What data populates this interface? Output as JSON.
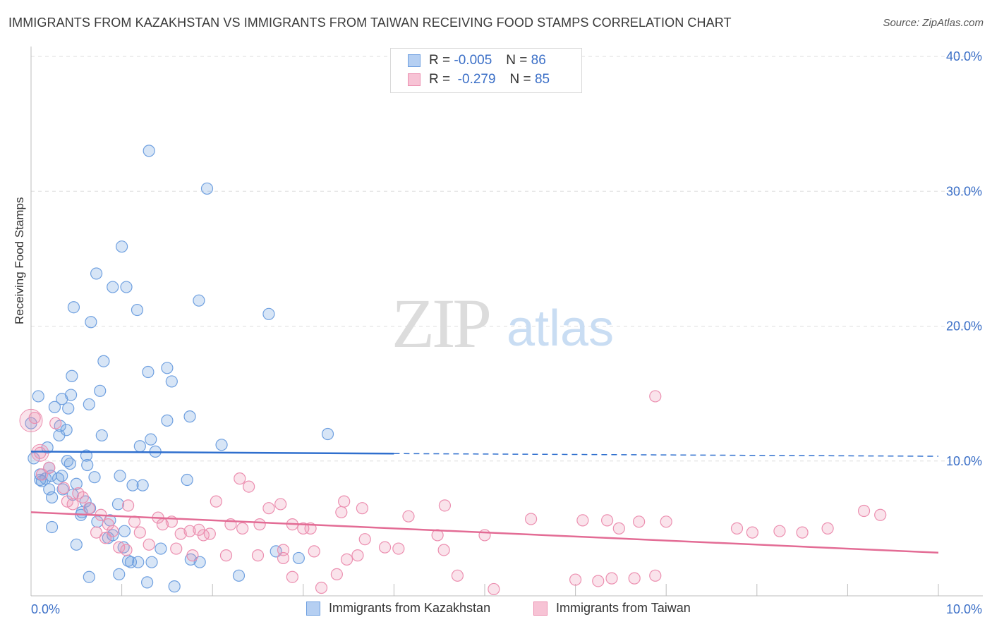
{
  "title": "IMMIGRANTS FROM KAZAKHSTAN VS IMMIGRANTS FROM TAIWAN RECEIVING FOOD STAMPS CORRELATION CHART",
  "source": "Source: ZipAtlas.com",
  "watermark": {
    "zip": "ZIP",
    "atlas": "atlas"
  },
  "legend": {
    "rows": [
      {
        "r_label": "R =",
        "r_value": "-0.005",
        "n_label": "N =",
        "n_value": "86"
      },
      {
        "r_label": "R =",
        "r_value": "-0.279",
        "n_label": "N =",
        "n_value": "85"
      }
    ]
  },
  "bottom_legend": [
    "Immigrants from Kazakhstan",
    "Immigrants from Taiwan"
  ],
  "chart_data": {
    "type": "scatter",
    "title": "IMMIGRANTS FROM KAZAKHSTAN VS IMMIGRANTS FROM TAIWAN RECEIVING FOOD STAMPS CORRELATION CHART",
    "xlabel": "",
    "ylabel": "Receiving Food Stamps",
    "xlim": [
      0,
      10
    ],
    "ylim": [
      0,
      40
    ],
    "x_tick_labels": [
      "0.0%",
      "10.0%"
    ],
    "y_ticks": [
      10,
      20,
      30,
      40
    ],
    "y_tick_labels": [
      "10.0%",
      "20.0%",
      "30.0%",
      "40.0%"
    ],
    "colors": {
      "kazakhstan": "#6fa0e0",
      "taiwan": "#ec8fb0",
      "kaz_line": "#2f6fce",
      "tw_line": "#e36c95"
    },
    "series": [
      {
        "name": "Immigrants from Kazakhstan",
        "r": -0.005,
        "n": 86,
        "trend": {
          "x0": 0.0,
          "y0": 10.7,
          "x1": 4.0,
          "y1": 10.55,
          "dash_to_x": 10.0,
          "dash_to_y": 10.35
        },
        "points": [
          [
            1.3,
            33.0
          ],
          [
            1.94,
            30.2
          ],
          [
            1.0,
            25.9
          ],
          [
            0.72,
            23.9
          ],
          [
            0.9,
            22.9
          ],
          [
            1.05,
            22.9
          ],
          [
            0.47,
            21.4
          ],
          [
            1.17,
            21.2
          ],
          [
            1.85,
            21.9
          ],
          [
            2.62,
            20.9
          ],
          [
            0.66,
            20.3
          ],
          [
            0.8,
            17.4
          ],
          [
            1.29,
            16.6
          ],
          [
            1.5,
            16.9
          ],
          [
            0.45,
            16.3
          ],
          [
            1.55,
            15.9
          ],
          [
            0.08,
            14.8
          ],
          [
            0.76,
            15.2
          ],
          [
            0.34,
            14.6
          ],
          [
            0.44,
            14.9
          ],
          [
            0.64,
            14.2
          ],
          [
            0.26,
            14.0
          ],
          [
            0.41,
            13.9
          ],
          [
            1.5,
            13.0
          ],
          [
            1.75,
            13.3
          ],
          [
            0.32,
            12.6
          ],
          [
            0.0,
            12.8
          ],
          [
            0.39,
            12.3
          ],
          [
            0.31,
            11.9
          ],
          [
            0.78,
            11.9
          ],
          [
            1.32,
            11.6
          ],
          [
            3.27,
            12.0
          ],
          [
            1.2,
            11.1
          ],
          [
            2.1,
            11.2
          ],
          [
            0.18,
            11.0
          ],
          [
            1.37,
            10.7
          ],
          [
            0.61,
            10.4
          ],
          [
            0.03,
            10.2
          ],
          [
            0.2,
            9.5
          ],
          [
            0.43,
            9.8
          ],
          [
            0.62,
            9.7
          ],
          [
            0.1,
            9.0
          ],
          [
            0.22,
            8.9
          ],
          [
            0.16,
            8.7
          ],
          [
            0.1,
            8.6
          ],
          [
            0.34,
            8.9
          ],
          [
            0.7,
            8.8
          ],
          [
            0.98,
            8.9
          ],
          [
            1.72,
            8.6
          ],
          [
            0.5,
            8.3
          ],
          [
            0.2,
            7.9
          ],
          [
            0.35,
            7.9
          ],
          [
            0.46,
            7.5
          ],
          [
            1.12,
            8.2
          ],
          [
            1.23,
            8.2
          ],
          [
            0.6,
            7.0
          ],
          [
            0.23,
            7.3
          ],
          [
            0.65,
            6.5
          ],
          [
            0.56,
            6.2
          ],
          [
            0.96,
            6.8
          ],
          [
            0.73,
            5.5
          ],
          [
            0.87,
            5.6
          ],
          [
            0.23,
            5.1
          ],
          [
            1.03,
            4.8
          ],
          [
            0.85,
            4.3
          ],
          [
            0.5,
            3.8
          ],
          [
            1.02,
            3.6
          ],
          [
            1.43,
            3.5
          ],
          [
            1.07,
            2.6
          ],
          [
            1.33,
            2.5
          ],
          [
            1.18,
            2.5
          ],
          [
            1.1,
            2.5
          ],
          [
            1.76,
            2.7
          ],
          [
            1.86,
            2.5
          ],
          [
            2.7,
            3.3
          ],
          [
            2.95,
            2.8
          ],
          [
            0.64,
            1.4
          ],
          [
            0.97,
            1.6
          ],
          [
            1.28,
            1.0
          ],
          [
            1.58,
            0.7
          ],
          [
            2.29,
            1.5
          ],
          [
            0.12,
            8.5
          ],
          [
            0.3,
            8.7
          ],
          [
            0.55,
            6.0
          ],
          [
            0.4,
            10.0
          ],
          [
            0.9,
            4.5
          ]
        ]
      },
      {
        "name": "Immigrants from Taiwan",
        "r": -0.279,
        "n": 85,
        "trend": {
          "x0": 0.0,
          "y0": 6.2,
          "x1": 10.0,
          "y1": 3.2
        },
        "points": [
          [
            0.04,
            13.2
          ],
          [
            0.27,
            12.8
          ],
          [
            0.1,
            10.6
          ],
          [
            0.2,
            9.5
          ],
          [
            0.12,
            9.0
          ],
          [
            0.36,
            8.0
          ],
          [
            0.52,
            7.6
          ],
          [
            0.57,
            7.3
          ],
          [
            0.4,
            7.0
          ],
          [
            0.46,
            6.8
          ],
          [
            0.64,
            6.5
          ],
          [
            0.77,
            6.0
          ],
          [
            1.07,
            6.7
          ],
          [
            1.4,
            5.8
          ],
          [
            1.55,
            5.5
          ],
          [
            1.14,
            5.5
          ],
          [
            0.85,
            5.3
          ],
          [
            0.9,
            4.8
          ],
          [
            1.2,
            4.7
          ],
          [
            1.45,
            5.3
          ],
          [
            1.65,
            4.6
          ],
          [
            1.75,
            4.8
          ],
          [
            1.85,
            4.9
          ],
          [
            1.9,
            4.5
          ],
          [
            1.97,
            4.6
          ],
          [
            2.2,
            5.3
          ],
          [
            2.33,
            5.0
          ],
          [
            2.52,
            5.3
          ],
          [
            2.62,
            6.5
          ],
          [
            2.75,
            6.8
          ],
          [
            2.3,
            8.7
          ],
          [
            2.4,
            8.1
          ],
          [
            2.04,
            7.0
          ],
          [
            2.88,
            5.3
          ],
          [
            3.0,
            5.0
          ],
          [
            3.08,
            5.0
          ],
          [
            3.42,
            6.2
          ],
          [
            3.45,
            7.0
          ],
          [
            3.65,
            6.5
          ],
          [
            4.16,
            5.9
          ],
          [
            4.56,
            6.7
          ],
          [
            4.48,
            4.5
          ],
          [
            5.0,
            4.5
          ],
          [
            5.51,
            5.7
          ],
          [
            6.08,
            5.6
          ],
          [
            6.35,
            5.6
          ],
          [
            6.7,
            5.5
          ],
          [
            7.0,
            5.5
          ],
          [
            7.78,
            5.0
          ],
          [
            7.95,
            4.7
          ],
          [
            8.25,
            4.8
          ],
          [
            8.5,
            4.7
          ],
          [
            8.78,
            5.0
          ],
          [
            9.18,
            6.3
          ],
          [
            9.36,
            6.0
          ],
          [
            6.48,
            5.0
          ],
          [
            3.68,
            4.2
          ],
          [
            3.9,
            3.6
          ],
          [
            4.05,
            3.5
          ],
          [
            2.78,
            3.4
          ],
          [
            2.5,
            3.0
          ],
          [
            1.6,
            3.5
          ],
          [
            1.3,
            3.8
          ],
          [
            1.05,
            3.4
          ],
          [
            0.97,
            3.6
          ],
          [
            0.82,
            4.3
          ],
          [
            0.72,
            4.7
          ],
          [
            1.78,
            3.0
          ],
          [
            2.15,
            3.0
          ],
          [
            2.78,
            2.8
          ],
          [
            3.12,
            3.3
          ],
          [
            3.48,
            2.7
          ],
          [
            3.6,
            3.0
          ],
          [
            4.55,
            3.4
          ],
          [
            3.37,
            1.6
          ],
          [
            2.88,
            1.4
          ],
          [
            4.7,
            1.5
          ],
          [
            3.2,
            0.6
          ],
          [
            5.1,
            0.5
          ],
          [
            6.0,
            1.2
          ],
          [
            6.25,
            1.1
          ],
          [
            6.4,
            1.3
          ],
          [
            6.65,
            1.3
          ],
          [
            6.88,
            1.5
          ],
          [
            6.88,
            14.8
          ]
        ]
      }
    ]
  }
}
